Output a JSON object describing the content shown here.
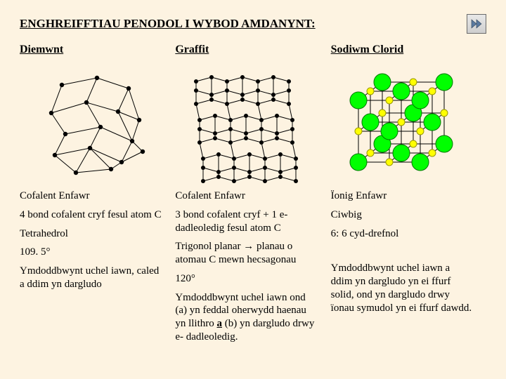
{
  "title": "ENGHREIFFTIAU PENODOL I WYBOD AMDANYNT:",
  "nav_icon": "play-forward-icon",
  "columns": [
    {
      "head": "Diemwnt"
    },
    {
      "head": "Graffit"
    },
    {
      "head": "Sodiwm Clorid"
    }
  ],
  "table": {
    "col1": {
      "r0": "Cofalent Enfawr",
      "r1": "4 bond cofalent cryf fesul atom C",
      "r2": "Tetrahedrol",
      "r3": "109. 5°",
      "r4": "Ymdoddbwynt uchel iawn, caled a ddim yn dargludo"
    },
    "col2": {
      "r0": "Cofalent Enfawr",
      "r1": "3 bond cofalent cryf + 1 e- dadleoledig fesul atom C",
      "r2_pre": "Trigonol planar ",
      "r2_post": " planau o atomau C mewn hecsagonau",
      "r3": "120°",
      "r4_pre": "Ymdoddbwynt uchel iawn ond (a) yn feddal oherwydd haenau yn llithro ",
      "r4_u": "a",
      "r4_post": " (b) yn dargludo drwy e- dadleoledig."
    },
    "col3": {
      "r0": "Ïonig Enfawr",
      "r1": "Ciwbig",
      "r2": "6: 6 cyd-drefnol",
      "r4": "Ymdoddbwynt uchel iawn a ddim yn dargludo yn ei ffurf solid, ond yn dargludo drwy ïonau symudol yn ei ffurf dawdd."
    }
  },
  "diag_diamond": {
    "node_fill": "#000000",
    "node_r": 3.2,
    "edge_color": "#000000",
    "edge_w": 1
  },
  "diag_graphite": {
    "node_fill": "#000000",
    "node_r": 3.0,
    "edge_color": "#000000",
    "edge_w": 1
  },
  "diag_nacl": {
    "cation_fill": "#00ff00",
    "cation_stroke": "#007700",
    "cation_r": 12,
    "anion_fill": "#ffff00",
    "anion_stroke": "#999900",
    "anion_r": 5,
    "edge_color": "#000000",
    "edge_w": 1
  },
  "arrow_glyph": "→"
}
